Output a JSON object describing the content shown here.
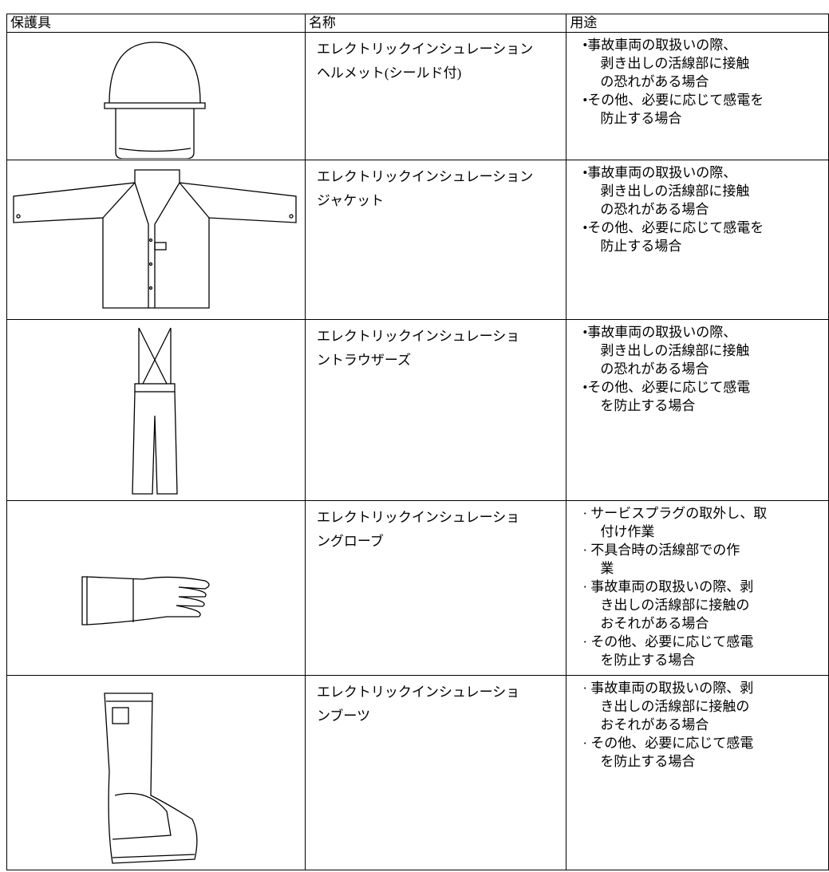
{
  "table": {
    "header": [
      "保護具",
      "名称",
      "用途"
    ],
    "rows": [
      {
        "name": [
          "エレクトリックインシュレーション",
          "ヘルメット(シールド付)"
        ],
        "usage": [
          [
            "•事故車両の取扱いの際、",
            "剥き出しの活線部に接触",
            "の恐れがある場合"
          ],
          [
            "•その他、必要に応じて感電を",
            "防止する場合"
          ]
        ]
      },
      {
        "name": [
          "エレクトリックインシュレーション",
          "ジャケット"
        ],
        "usage": [
          [
            "•事故車両の取扱いの際、",
            "剥き出しの活線部に接触",
            "の恐れがある場合"
          ],
          [
            "•その他、必要に応じて感電を",
            "防止する場合"
          ]
        ]
      },
      {
        "name": [
          "エレクトリックインシュレーショ",
          "ントラウザーズ"
        ],
        "usage": [
          [
            "•事故車両の取扱いの際、",
            "剥き出しの活線部に接触",
            "の恐れがある場合"
          ],
          [
            "•その他、必要に応じて感電",
            "を防止する場合"
          ]
        ]
      },
      {
        "name": [
          "エレクトリックインシュレーショ",
          "ングローブ"
        ],
        "usage": [
          [
            "· サービスプラグの取外し、取",
            "付け作業"
          ],
          [
            "· 不具合時の活線部での作",
            "業"
          ],
          [
            "· 事故車両の取扱いの際、剥",
            "き出しの活線部に接触の",
            "おそれがある場合"
          ],
          [
            "· その他、必要に応じて感電",
            "を防止する場合"
          ]
        ]
      },
      {
        "name": [
          "エレクトリックインシュレーショ",
          "ンブーツ"
        ],
        "usage": [
          [
            "· 事故車両の取扱いの際、剥",
            "き出しの活線部に接触の",
            "おそれがある場合"
          ],
          [
            "· その他、必要に応じて感電",
            "を防止する場合"
          ]
        ]
      }
    ]
  }
}
